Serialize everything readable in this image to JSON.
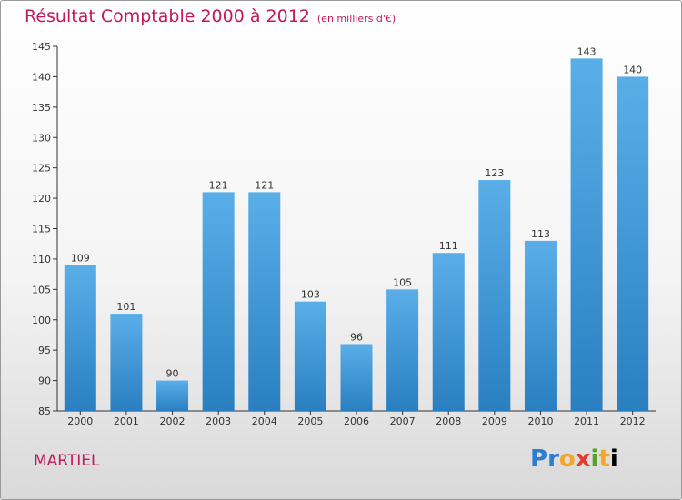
{
  "header": {
    "title": "Résultat Comptable 2000 à 2012",
    "subtitle": "(en milliers d'€)"
  },
  "footer": {
    "commune": "MARTIEL",
    "brand": "Proxiti"
  },
  "colors": {
    "title": "#c2185b",
    "bar_top": "#5aaee8",
    "bar_bottom": "#2a7fc1"
  },
  "chart_data": {
    "type": "bar",
    "title": "Résultat Comptable 2000 à 2012",
    "subtitle": "(en milliers d'€)",
    "categories": [
      "2000",
      "2001",
      "2002",
      "2003",
      "2004",
      "2005",
      "2006",
      "2007",
      "2008",
      "2009",
      "2010",
      "2011",
      "2012"
    ],
    "values": [
      109,
      101,
      90,
      121,
      121,
      103,
      96,
      105,
      111,
      123,
      113,
      143,
      140
    ],
    "ylim": [
      85,
      145
    ],
    "yticks": [
      85,
      90,
      95,
      100,
      105,
      110,
      115,
      120,
      125,
      130,
      135,
      140,
      145
    ],
    "grid": false,
    "data_labels": true
  }
}
